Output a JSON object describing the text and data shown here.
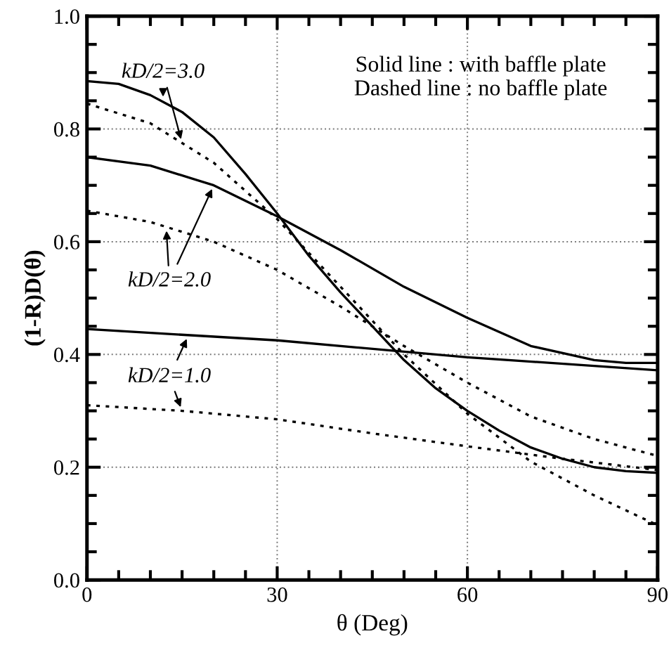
{
  "chart_data": {
    "type": "line",
    "xlabel": "θ (Deg)",
    "ylabel": "(1-R)D(θ)",
    "xlim": [
      0,
      90
    ],
    "ylim": [
      0,
      1.0
    ],
    "xticks": [
      0,
      {
        "value": 5,
        "label": null
      },
      {
        "value": 10,
        "label": null
      },
      {
        "value": 15,
        "label": null
      },
      {
        "value": 20,
        "label": null
      },
      {
        "value": 25,
        "label": null
      },
      30,
      {
        "value": 35,
        "label": null
      },
      {
        "value": 40,
        "label": null
      },
      {
        "value": 45,
        "label": null
      },
      {
        "value": 50,
        "label": null
      },
      {
        "value": 55,
        "label": null
      },
      60,
      {
        "value": 65,
        "label": null
      },
      {
        "value": 70,
        "label": null
      },
      {
        "value": 75,
        "label": null
      },
      {
        "value": 80,
        "label": null
      },
      {
        "value": 85,
        "label": null
      },
      90
    ],
    "yticks": [
      {
        "value": 0,
        "label": "0.0"
      },
      {
        "value": 0.05,
        "label": null
      },
      {
        "value": 0.1,
        "label": null
      },
      {
        "value": 0.15,
        "label": null
      },
      {
        "value": 0.2,
        "label": "0.2"
      },
      {
        "value": 0.25,
        "label": null
      },
      {
        "value": 0.3,
        "label": null
      },
      {
        "value": 0.35,
        "label": null
      },
      {
        "value": 0.4,
        "label": "0.4"
      },
      {
        "value": 0.45,
        "label": null
      },
      {
        "value": 0.5,
        "label": null
      },
      {
        "value": 0.55,
        "label": null
      },
      {
        "value": 0.6,
        "label": "0.6"
      },
      {
        "value": 0.65,
        "label": null
      },
      {
        "value": 0.7,
        "label": null
      },
      {
        "value": 0.75,
        "label": null
      },
      {
        "value": 0.8,
        "label": "0.8"
      },
      {
        "value": 0.85,
        "label": null
      },
      {
        "value": 0.9,
        "label": null
      },
      {
        "value": 0.95,
        "label": null
      },
      {
        "value": 1.0,
        "label": "1.0"
      }
    ],
    "grid": true,
    "marker": "none",
    "series": [
      {
        "color": "#000000",
        "line_style": "solid",
        "x": [
          0,
          5,
          10,
          15,
          20,
          25,
          30,
          35,
          40,
          45,
          50,
          55,
          60,
          65,
          70,
          75,
          80,
          85,
          90
        ],
        "values": [
          0.885,
          0.88,
          0.86,
          0.83,
          0.785,
          0.72,
          0.65,
          0.575,
          0.51,
          0.45,
          0.39,
          0.34,
          0.3,
          0.265,
          0.235,
          0.215,
          0.2,
          0.193,
          0.19
        ]
      },
      {
        "color": "#000000",
        "line_style": "dotted",
        "x": [
          0,
          10,
          20,
          30,
          40,
          50,
          60,
          70,
          80,
          90
        ],
        "values": [
          0.845,
          0.81,
          0.74,
          0.64,
          0.52,
          0.4,
          0.295,
          0.21,
          0.15,
          0.097
        ]
      },
      {
        "color": "#000000",
        "line_style": "solid",
        "x": [
          0,
          10,
          20,
          30,
          40,
          50,
          60,
          65,
          70,
          80,
          85,
          90
        ],
        "values": [
          0.75,
          0.735,
          0.7,
          0.645,
          0.585,
          0.52,
          0.465,
          0.44,
          0.415,
          0.39,
          0.385,
          0.385
        ]
      },
      {
        "color": "#000000",
        "line_style": "dotted",
        "x": [
          0,
          10,
          20,
          30,
          40,
          50,
          60,
          70,
          80,
          90
        ],
        "values": [
          0.655,
          0.635,
          0.6,
          0.55,
          0.485,
          0.415,
          0.35,
          0.29,
          0.25,
          0.22
        ]
      },
      {
        "color": "#000000",
        "line_style": "solid",
        "x": [
          0,
          30,
          60,
          90
        ],
        "values": [
          0.445,
          0.425,
          0.395,
          0.372
        ]
      },
      {
        "color": "#000000",
        "line_style": "dotted",
        "x": [
          0,
          15,
          30,
          45,
          60,
          75,
          90
        ],
        "values": [
          0.31,
          0.3,
          0.285,
          0.26,
          0.237,
          0.215,
          0.195
        ]
      }
    ],
    "annotations": [
      {
        "text": "kD/2=3.0",
        "x": 12,
        "y": 0.85
      },
      {
        "text": "kD/2=2.0",
        "x": 20,
        "y": 0.7
      },
      {
        "text": "kD/2=1.0",
        "x": 16,
        "y": 0.434
      },
      "Solid line : with baffle plate\nDashed line : no baffle plate"
    ]
  }
}
